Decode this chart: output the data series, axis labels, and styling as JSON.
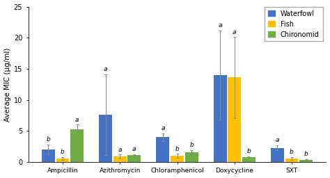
{
  "categories": [
    "Ampicillin",
    "Azithromycin",
    "Chloramphenicol",
    "Doxycycline",
    "SXT"
  ],
  "series": {
    "Waterfowl": {
      "values": [
        2.0,
        7.6,
        4.0,
        14.0,
        2.3
      ],
      "errors": [
        0.8,
        6.5,
        0.6,
        7.2,
        0.4
      ],
      "color": "#4472C4",
      "labels": [
        "b",
        "a",
        "a",
        "a",
        "a"
      ]
    },
    "Fish": {
      "values": [
        0.6,
        0.9,
        1.0,
        13.6,
        0.6
      ],
      "errors": [
        0.2,
        0.3,
        0.3,
        6.5,
        0.2
      ],
      "color": "#FFC000",
      "labels": [
        "b",
        "a",
        "b",
        "a",
        "b"
      ]
    },
    "Chironomid": {
      "values": [
        5.3,
        1.1,
        1.6,
        0.8,
        0.4
      ],
      "errors": [
        0.7,
        0.15,
        0.35,
        0.15,
        0.1
      ],
      "color": "#70AD47",
      "labels": [
        "a",
        "a",
        "b",
        "b",
        "b"
      ]
    }
  },
  "ylabel": "Average MIC (μg/ml)",
  "ylim": [
    0,
    25
  ],
  "yticks": [
    0,
    5,
    10,
    15,
    20,
    25
  ],
  "bar_width": 0.25,
  "legend_order": [
    "Waterfowl",
    "Fish",
    "Chironomid"
  ],
  "background_color": "#ffffff",
  "label_fontsize": 6.5,
  "tick_fontsize": 7,
  "ylabel_fontsize": 7.5,
  "legend_fontsize": 7,
  "stat_label_fontsize": 6.5
}
